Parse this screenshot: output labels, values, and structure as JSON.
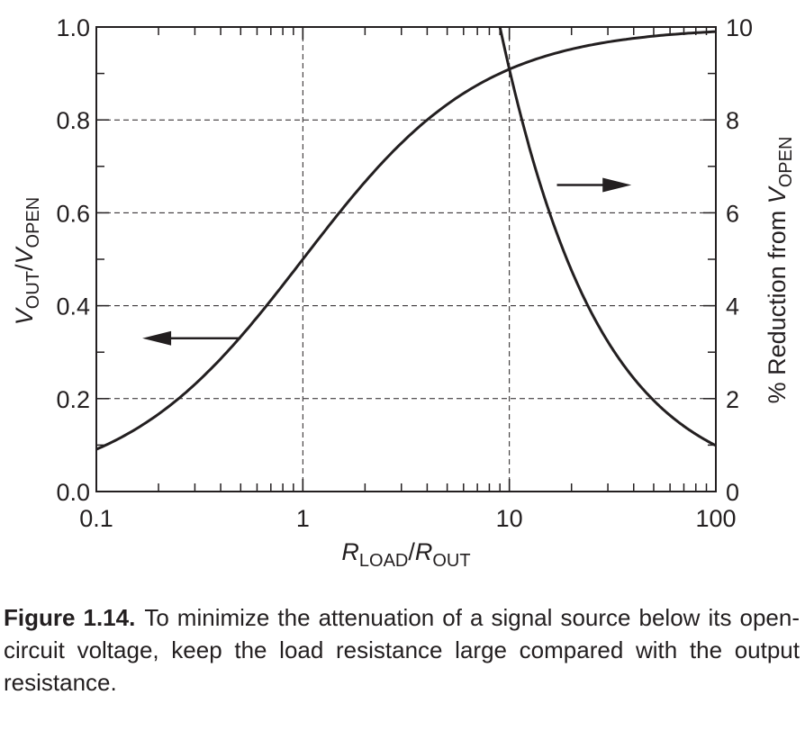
{
  "chart_data": {
    "type": "line",
    "x_scale": "log",
    "xlim": [
      0.1,
      100
    ],
    "ylim_left": [
      0,
      1
    ],
    "ylim_right": [
      0,
      10
    ],
    "grid": true,
    "x_ticks": [
      "0.1",
      "1",
      "10",
      "100"
    ],
    "y_ticks_left": [
      "0.0",
      "0.2",
      "0.4",
      "0.6",
      "0.8",
      "1.0"
    ],
    "y_ticks_right": [
      "0",
      "2",
      "4",
      "6",
      "8",
      "10"
    ],
    "xlabel": {
      "r1": "R",
      "sub1": "LOAD",
      "slash": "/",
      "r2": "R",
      "sub2": "OUT"
    },
    "ylabel_left": {
      "v1": "V",
      "sub1": "OUT",
      "slash": "/",
      "v2": "V",
      "sub2": "OPEN"
    },
    "ylabel_right": {
      "prefix": "% Reduction from ",
      "v": "V",
      "sub": "OPEN"
    },
    "series": [
      {
        "axis": "left",
        "x": [
          0.1,
          0.15,
          0.2,
          0.3,
          0.5,
          0.7,
          1,
          1.5,
          2,
          3,
          5,
          7,
          10,
          15,
          20,
          30,
          50,
          70,
          100
        ],
        "y": [
          0.091,
          0.13,
          0.167,
          0.231,
          0.333,
          0.412,
          0.5,
          0.6,
          0.667,
          0.75,
          0.833,
          0.875,
          0.909,
          0.9375,
          0.952,
          0.968,
          0.98,
          0.986,
          0.99
        ]
      },
      {
        "axis": "right",
        "x": [
          9,
          10,
          12,
          15,
          20,
          25,
          30,
          40,
          50,
          70,
          100
        ],
        "y": [
          10,
          9.09,
          7.69,
          6.25,
          4.76,
          3.85,
          3.23,
          2.44,
          1.96,
          1.41,
          0.99
        ]
      }
    ],
    "annotations": [
      {
        "type": "arrow",
        "direction": "left",
        "target_axis": "left"
      },
      {
        "type": "arrow",
        "direction": "right",
        "target_axis": "right"
      }
    ]
  },
  "caption": {
    "label": "Figure 1.14.",
    "text": "To minimize the attenuation of a signal source below its open-circuit voltage, keep the load resistance large compared with the output resistance."
  }
}
